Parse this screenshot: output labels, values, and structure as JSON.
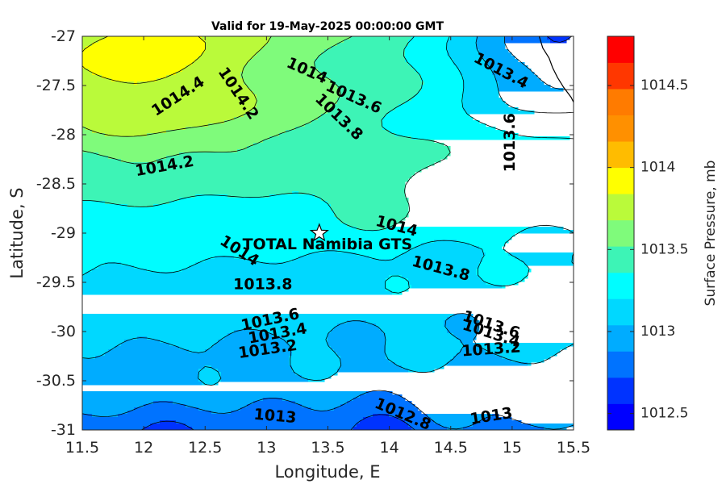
{
  "chart_data": {
    "type": "contour",
    "title": "Valid for 19-May-2025 00:00:00 GMT",
    "xlabel": "Longitude, E",
    "ylabel": "Latitude, S",
    "xlim": [
      11.5,
      15.5
    ],
    "ylim": [
      -31,
      -27
    ],
    "xticks": [
      "11.5",
      "12",
      "12.5",
      "13",
      "13.5",
      "14",
      "14.5",
      "15",
      "15.5"
    ],
    "yticks": [
      "-27",
      "-27.5",
      "-28",
      "-28.5",
      "-29",
      "-29.5",
      "-30",
      "-30.5",
      "-31"
    ],
    "colorbar": {
      "label": "Surface Pressure, mb",
      "range": [
        1012.4,
        1014.8
      ],
      "step": 0.2,
      "ticks": [
        "1012.5",
        "1013",
        "1013.5",
        "1014",
        "1014.5"
      ],
      "colors": [
        "#0000ff",
        "#0033ff",
        "#0073ff",
        "#00acff",
        "#00d8ff",
        "#00fdff",
        "#3df4b6",
        "#7ffb7b",
        "#bafa3a",
        "#ffff00",
        "#ffbc00",
        "#ff9000",
        "#ff7b00",
        "#ff3700",
        "#ff0000"
      ]
    },
    "marker": {
      "name": "TOTAL Namibia GTS",
      "lon": 13.43,
      "lat": -29.0,
      "symbol": "star"
    },
    "contour_labels": [
      {
        "text": "1014.4",
        "lon": 12.28,
        "lat": -27.61,
        "angle": -33
      },
      {
        "text": "1014.2",
        "lon": 12.77,
        "lat": -27.58,
        "angle": 56
      },
      {
        "text": "1014",
        "lon": 13.33,
        "lat": -27.35,
        "angle": 24
      },
      {
        "text": "1013.6",
        "lon": 13.71,
        "lat": -27.62,
        "angle": 24
      },
      {
        "text": "1013.8",
        "lon": 13.59,
        "lat": -27.82,
        "angle": 44
      },
      {
        "text": "1013.4",
        "lon": 14.91,
        "lat": -27.35,
        "angle": 28
      },
      {
        "text": "1013.6",
        "lon": 14.98,
        "lat": -28.08,
        "angle": -90
      },
      {
        "text": "1014.2",
        "lon": 12.17,
        "lat": -28.32,
        "angle": -10
      },
      {
        "text": "1014",
        "lon": 14.06,
        "lat": -28.93,
        "angle": 15
      },
      {
        "text": "1014",
        "lon": 12.78,
        "lat": -29.18,
        "angle": 33
      },
      {
        "text": "1013.8",
        "lon": 12.97,
        "lat": -29.52,
        "angle": 0
      },
      {
        "text": "1013.8",
        "lon": 14.42,
        "lat": -29.36,
        "angle": 15
      },
      {
        "text": "1013.6",
        "lon": 13.03,
        "lat": -29.88,
        "angle": -12
      },
      {
        "text": "1013.6",
        "lon": 14.83,
        "lat": -29.93,
        "angle": 18
      },
      {
        "text": "1013.4",
        "lon": 13.09,
        "lat": -30.02,
        "angle": -10
      },
      {
        "text": "1013.4",
        "lon": 14.83,
        "lat": -30.02,
        "angle": 18
      },
      {
        "text": "1013.2",
        "lon": 13.01,
        "lat": -30.18,
        "angle": -8
      },
      {
        "text": "1013.2",
        "lon": 14.83,
        "lat": -30.18,
        "angle": -4
      },
      {
        "text": "1013",
        "lon": 13.07,
        "lat": -30.86,
        "angle": 5
      },
      {
        "text": "1012.8",
        "lon": 14.11,
        "lat": -30.84,
        "angle": 23
      },
      {
        "text": "1013",
        "lon": 14.83,
        "lat": -30.86,
        "angle": -9
      }
    ]
  }
}
